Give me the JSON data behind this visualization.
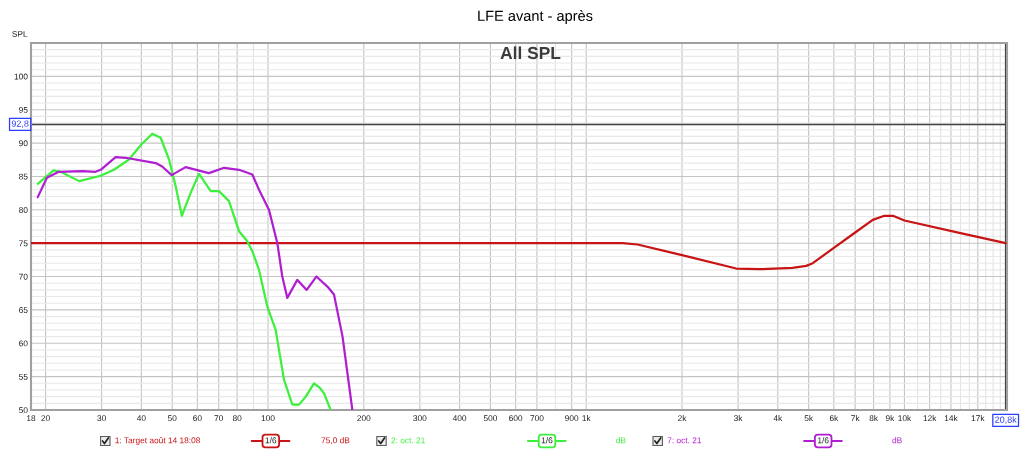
{
  "chart_data": {
    "type": "line",
    "title": "LFE avant - après",
    "subtitle": "All SPL",
    "ylabel": "SPL",
    "log": "x",
    "grid": true,
    "legend": "bottom",
    "xlim": [
      18,
      21000
    ],
    "ylim": [
      50,
      105
    ],
    "xticks": [
      18,
      20,
      30,
      40,
      50,
      60,
      70,
      80,
      {
        "value": 90,
        "label": null
      },
      100,
      200,
      300,
      400,
      500,
      600,
      700,
      {
        "value": 800,
        "label": null
      },
      900,
      {
        "value": 1000,
        "label": "1k"
      },
      {
        "value": 2000,
        "label": "2k"
      },
      {
        "value": 3000,
        "label": "3k"
      },
      {
        "value": 4000,
        "label": "4k"
      },
      {
        "value": 5000,
        "label": "5k"
      },
      {
        "value": 6000,
        "label": "6k"
      },
      {
        "value": 7000,
        "label": "7k"
      },
      {
        "value": 8000,
        "label": "8k"
      },
      {
        "value": 9000,
        "label": "9k"
      },
      {
        "value": 10000,
        "label": "10k"
      },
      {
        "value": 11000,
        "label": null
      },
      {
        "value": 12000,
        "label": "12k"
      },
      {
        "value": 13000,
        "label": null
      },
      {
        "value": 14000,
        "label": "14k"
      },
      {
        "value": 15000,
        "label": null
      },
      {
        "value": 16000,
        "label": null
      },
      {
        "value": 17000,
        "label": "17k"
      },
      {
        "value": 18000,
        "label": null
      },
      {
        "value": 19000,
        "label": null
      },
      {
        "value": 20000,
        "label": null
      }
    ],
    "yticks": [
      50,
      {
        "value": 51,
        "label": null
      },
      {
        "value": 52,
        "label": null
      },
      {
        "value": 53,
        "label": null
      },
      {
        "value": 54,
        "label": null
      },
      55,
      {
        "value": 56,
        "label": null
      },
      {
        "value": 57,
        "label": null
      },
      {
        "value": 58,
        "label": null
      },
      {
        "value": 59,
        "label": null
      },
      60,
      {
        "value": 61,
        "label": null
      },
      {
        "value": 62,
        "label": null
      },
      {
        "value": 63,
        "label": null
      },
      {
        "value": 64,
        "label": null
      },
      65,
      {
        "value": 66,
        "label": null
      },
      {
        "value": 67,
        "label": null
      },
      {
        "value": 68,
        "label": null
      },
      {
        "value": 69,
        "label": null
      },
      70,
      {
        "value": 71,
        "label": null
      },
      {
        "value": 72,
        "label": null
      },
      {
        "value": 73,
        "label": null
      },
      {
        "value": 74,
        "label": null
      },
      75,
      {
        "value": 76,
        "label": null
      },
      {
        "value": 77,
        "label": null
      },
      {
        "value": 78,
        "label": null
      },
      {
        "value": 79,
        "label": null
      },
      80,
      {
        "value": 81,
        "label": null
      },
      {
        "value": 82,
        "label": null
      },
      {
        "value": 83,
        "label": null
      },
      {
        "value": 84,
        "label": null
      },
      85,
      {
        "value": 86,
        "label": null
      },
      {
        "value": 87,
        "label": null
      },
      {
        "value": 88,
        "label": null
      },
      {
        "value": 89,
        "label": null
      },
      90,
      {
        "value": 91,
        "label": null
      },
      {
        "value": 92,
        "label": null
      },
      {
        "value": 93,
        "label": null
      },
      {
        "value": 94,
        "label": null
      },
      95,
      {
        "value": 96,
        "label": null
      },
      {
        "value": 97,
        "label": null
      },
      {
        "value": 98,
        "label": null
      },
      {
        "value": 99,
        "label": null
      },
      100,
      {
        "value": 101,
        "label": null
      },
      {
        "value": 102,
        "label": null
      },
      {
        "value": 103,
        "label": null
      },
      {
        "value": 104,
        "label": null
      }
    ],
    "ref_lines": [
      {
        "axis": "y",
        "value": 92.8,
        "label": "92,8",
        "color": "#404040"
      },
      {
        "axis": "x",
        "value": 20800,
        "label": "20,8k",
        "color": "#404040"
      }
    ],
    "annotations": [
      "1/6",
      "75,0 dB",
      "1/6",
      "dB",
      "1/6",
      "dB"
    ],
    "series": [
      {
        "name": "1: Target août 14 18:08",
        "color": "#c81414",
        "x": [
          18,
          1300,
          1450,
          2000,
          2960,
          3500,
          4450,
          4910,
          5150,
          6000,
          7000,
          7950,
          8650,
          9200,
          10000,
          15000,
          20800
        ],
        "values": [
          75,
          75,
          74.8,
          73.2,
          71.2,
          71.1,
          71.3,
          71.6,
          72,
          74.3,
          76.6,
          78.5,
          79.1,
          79.1,
          78.4,
          76.5,
          75
        ]
      },
      {
        "name": "2: oct. 21",
        "color": "#3cf03c",
        "x": [
          18.9,
          21.2,
          22.3,
          25.5,
          29.8,
          32.8,
          36.5,
          40,
          43.3,
          46,
          48.9,
          51.3,
          53.6,
          57.1,
          60.7,
          66.1,
          70.1,
          75.4,
          81.1,
          86.1,
          89.3,
          93.7,
          99.5,
          105.7,
          112.3,
          119.3,
          125.2,
          131.4,
          139.5,
          145.6,
          150,
          157.4
        ],
        "values": [
          83.9,
          85.9,
          85.7,
          84.3,
          85.1,
          86,
          87.5,
          89.8,
          91.4,
          90.8,
          87.5,
          83.5,
          79.1,
          82.5,
          85.4,
          82.8,
          82.8,
          81.3,
          76.8,
          75.3,
          73.8,
          71,
          65.5,
          62,
          54.5,
          50.8,
          50.8,
          52,
          54,
          53.3,
          52.5,
          50
        ]
      },
      {
        "name": "7: oct. 21",
        "color": "#b01ed2",
        "x": [
          18.9,
          20.2,
          22.0,
          26.1,
          28.7,
          29.8,
          33.2,
          35.7,
          44.4,
          46.5,
          49.8,
          55.1,
          65.2,
          72.8,
          81.1,
          89.3,
          93.7,
          100.7,
          107,
          110.9,
          115,
          123.6,
          132.3,
          141.9,
          153.7,
          161.2,
          171.5,
          184.1
        ],
        "values": [
          81.9,
          84.8,
          85.7,
          85.8,
          85.7,
          86,
          87.9,
          87.8,
          87,
          86.5,
          85.2,
          86.4,
          85.5,
          86.3,
          86,
          85.3,
          83,
          80,
          75,
          70,
          66.8,
          69.5,
          68,
          70,
          68.5,
          67.3,
          61,
          50
        ]
      }
    ]
  }
}
